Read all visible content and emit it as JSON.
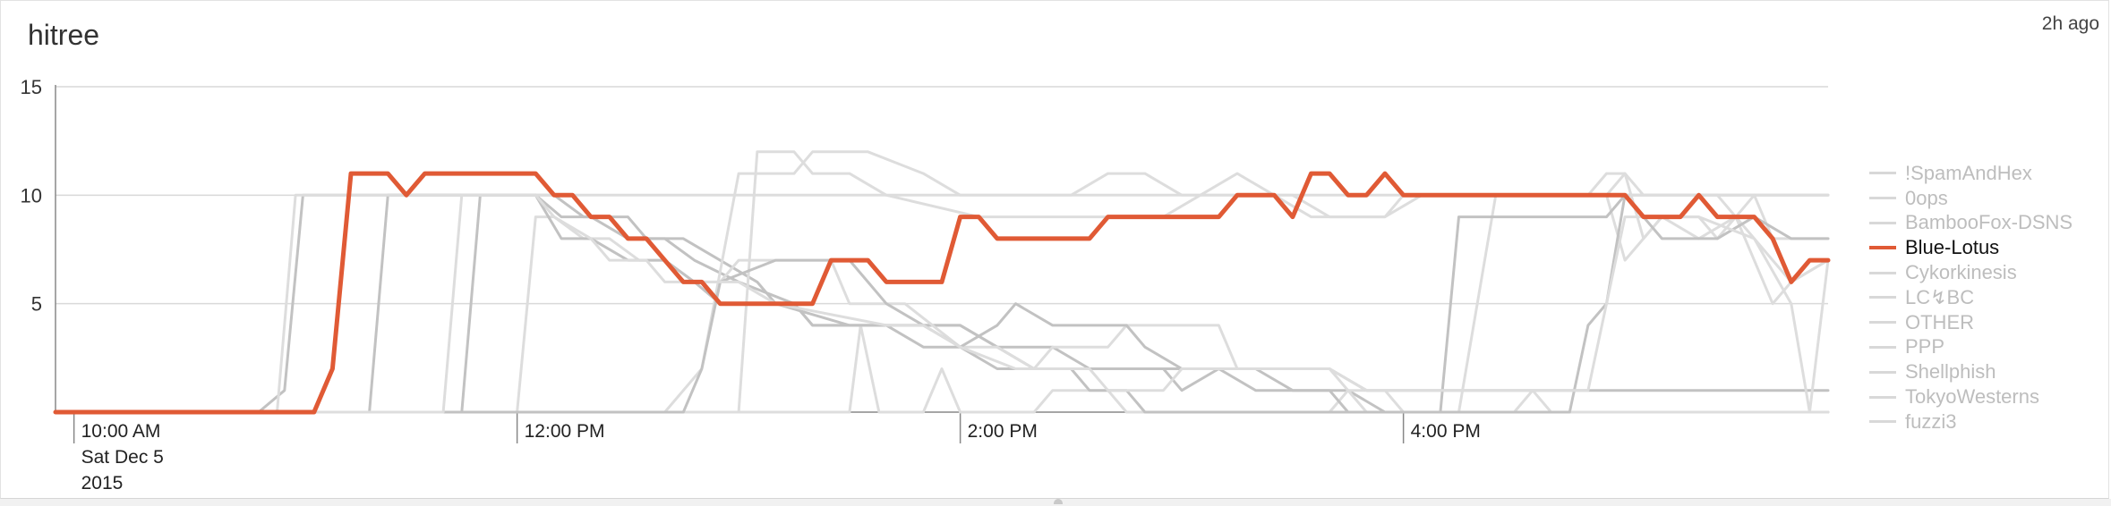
{
  "header": {
    "title": "hitree",
    "timestamp": "2h ago"
  },
  "colors": {
    "highlight": "#e05a35",
    "dimmed": "#dddddd",
    "dimmed_alt": "#c2c2c2",
    "grid": "#d9d9d9"
  },
  "chart_data": {
    "type": "line",
    "title": "hitree",
    "xlabel": "",
    "ylabel": "",
    "ylim": [
      0,
      15
    ],
    "xlim": [
      "09:55",
      "17:55"
    ],
    "y_ticks": [
      5,
      10,
      15
    ],
    "x_ticks": [
      {
        "time": "10:00",
        "label": "10:00 AM",
        "sublabel": [
          "Sat Dec 5",
          "2015"
        ]
      },
      {
        "time": "12:00",
        "label": "12:00 PM",
        "sublabel": []
      },
      {
        "time": "14:00",
        "label": "2:00 PM",
        "sublabel": []
      },
      {
        "time": "16:00",
        "label": "4:00 PM",
        "sublabel": []
      }
    ],
    "grid": true,
    "legend_position": "right",
    "highlighted_series": "Blue-Lotus",
    "series": [
      {
        "name": "!SpamAndHex",
        "points": [
          [
            "09:55",
            0
          ],
          [
            "10:50",
            0
          ],
          [
            "10:57",
            1
          ],
          [
            "11:02",
            10
          ],
          [
            "12:05",
            10
          ],
          [
            "12:12",
            9
          ],
          [
            "12:20",
            9
          ],
          [
            "12:30",
            8
          ],
          [
            "12:40",
            8
          ],
          [
            "12:48",
            7
          ],
          [
            "13:00",
            6
          ],
          [
            "13:15",
            5
          ],
          [
            "13:20",
            4
          ],
          [
            "14:00",
            4
          ],
          [
            "14:10",
            3
          ],
          [
            "14:25",
            3
          ],
          [
            "14:35",
            2
          ],
          [
            "15:20",
            2
          ],
          [
            "15:30",
            1
          ],
          [
            "15:45",
            1
          ],
          [
            "15:55",
            0
          ],
          [
            "17:55",
            0
          ]
        ]
      },
      {
        "name": "0ops",
        "points": [
          [
            "09:55",
            0
          ],
          [
            "11:45",
            0
          ],
          [
            "11:50",
            10
          ],
          [
            "12:10",
            10
          ],
          [
            "12:18",
            9
          ],
          [
            "12:30",
            9
          ],
          [
            "12:35",
            8
          ],
          [
            "12:45",
            8
          ],
          [
            "13:05",
            6
          ],
          [
            "13:10",
            5
          ],
          [
            "13:30",
            4
          ],
          [
            "14:00",
            4
          ],
          [
            "14:10",
            3
          ],
          [
            "14:20",
            2
          ],
          [
            "14:55",
            2
          ],
          [
            "15:00",
            1
          ],
          [
            "15:10",
            2
          ],
          [
            "15:40",
            2
          ],
          [
            "15:50",
            1
          ],
          [
            "17:55",
            1
          ]
        ]
      },
      {
        "name": "BambooFox-DSNS",
        "points": [
          [
            "09:55",
            0
          ],
          [
            "13:30",
            0
          ],
          [
            "13:33",
            4
          ],
          [
            "13:38",
            0
          ],
          [
            "13:50",
            0
          ],
          [
            "13:55",
            2
          ],
          [
            "14:00",
            0
          ],
          [
            "14:20",
            0
          ],
          [
            "14:25",
            1
          ],
          [
            "14:40",
            1
          ],
          [
            "14:45",
            0
          ],
          [
            "15:40",
            0
          ],
          [
            "15:45",
            1
          ],
          [
            "15:55",
            1
          ],
          [
            "16:00",
            0
          ],
          [
            "16:30",
            0
          ],
          [
            "16:35",
            1
          ],
          [
            "16:40",
            0
          ],
          [
            "17:55",
            0
          ]
        ]
      },
      {
        "name": "Blue-Lotus",
        "points": [
          [
            "09:55",
            0
          ],
          [
            "11:05",
            0
          ],
          [
            "11:10",
            2
          ],
          [
            "11:15",
            11
          ],
          [
            "11:25",
            11
          ],
          [
            "11:30",
            10
          ],
          [
            "11:35",
            11
          ],
          [
            "12:05",
            11
          ],
          [
            "12:10",
            10
          ],
          [
            "12:15",
            10
          ],
          [
            "12:20",
            9
          ],
          [
            "12:25",
            9
          ],
          [
            "12:30",
            8
          ],
          [
            "12:35",
            8
          ],
          [
            "12:45",
            6
          ],
          [
            "12:50",
            6
          ],
          [
            "12:55",
            5
          ],
          [
            "13:20",
            5
          ],
          [
            "13:25",
            7
          ],
          [
            "13:35",
            7
          ],
          [
            "13:40",
            6
          ],
          [
            "13:55",
            6
          ],
          [
            "14:00",
            9
          ],
          [
            "14:05",
            9
          ],
          [
            "14:10",
            8
          ],
          [
            "14:35",
            8
          ],
          [
            "14:40",
            9
          ],
          [
            "15:10",
            9
          ],
          [
            "15:15",
            10
          ],
          [
            "15:25",
            10
          ],
          [
            "15:30",
            9
          ],
          [
            "15:35",
            11
          ],
          [
            "15:40",
            11
          ],
          [
            "15:45",
            10
          ],
          [
            "15:50",
            10
          ],
          [
            "15:55",
            11
          ],
          [
            "16:00",
            10
          ],
          [
            "16:55",
            10
          ],
          [
            "17:00",
            10
          ],
          [
            "17:05",
            9
          ],
          [
            "17:15",
            9
          ],
          [
            "17:20",
            10
          ],
          [
            "17:25",
            9
          ],
          [
            "17:35",
            9
          ],
          [
            "17:40",
            8
          ],
          [
            "17:45",
            6
          ],
          [
            "17:50",
            7
          ],
          [
            "17:55",
            7
          ]
        ]
      },
      {
        "name": "Cykorkinesis",
        "points": [
          [
            "09:55",
            0
          ],
          [
            "12:00",
            0
          ],
          [
            "12:05",
            9
          ],
          [
            "12:10",
            9
          ],
          [
            "12:18",
            8
          ],
          [
            "12:25",
            8
          ],
          [
            "12:33",
            7
          ],
          [
            "12:40",
            7
          ],
          [
            "12:48",
            6
          ],
          [
            "12:55",
            6
          ],
          [
            "13:00",
            7
          ],
          [
            "13:25",
            7
          ],
          [
            "13:30",
            5
          ],
          [
            "13:45",
            5
          ],
          [
            "14:00",
            3
          ],
          [
            "14:10",
            3
          ],
          [
            "14:20",
            2
          ],
          [
            "14:25",
            3
          ],
          [
            "14:40",
            3
          ],
          [
            "14:45",
            4
          ],
          [
            "15:10",
            4
          ],
          [
            "15:15",
            2
          ],
          [
            "15:40",
            2
          ],
          [
            "15:50",
            0
          ],
          [
            "16:15",
            0
          ],
          [
            "16:25",
            10
          ],
          [
            "16:55",
            10
          ],
          [
            "17:00",
            7
          ],
          [
            "17:05",
            8
          ],
          [
            "17:10",
            9
          ],
          [
            "17:20",
            8
          ],
          [
            "17:30",
            9
          ],
          [
            "17:40",
            5
          ],
          [
            "17:45",
            6
          ],
          [
            "17:55",
            7
          ]
        ]
      },
      {
        "name": "LC↯BC",
        "points": [
          [
            "09:55",
            0
          ],
          [
            "11:20",
            0
          ],
          [
            "11:25",
            10
          ],
          [
            "11:55",
            10
          ],
          [
            "12:05",
            10
          ],
          [
            "12:12",
            8
          ],
          [
            "12:20",
            8
          ],
          [
            "12:30",
            7
          ],
          [
            "12:40",
            7
          ],
          [
            "12:48",
            6
          ],
          [
            "12:55",
            5
          ],
          [
            "13:15",
            5
          ],
          [
            "13:20",
            4
          ],
          [
            "13:40",
            4
          ],
          [
            "13:50",
            3
          ],
          [
            "14:00",
            3
          ],
          [
            "14:10",
            2
          ],
          [
            "14:30",
            2
          ],
          [
            "14:35",
            1
          ],
          [
            "14:45",
            1
          ],
          [
            "14:50",
            0
          ],
          [
            "16:45",
            0
          ],
          [
            "16:50",
            4
          ],
          [
            "16:55",
            5
          ],
          [
            "17:00",
            10
          ],
          [
            "17:55",
            10
          ]
        ]
      },
      {
        "name": "OTHER",
        "points": [
          [
            "09:55",
            0
          ],
          [
            "10:55",
            0
          ],
          [
            "11:00",
            10
          ],
          [
            "11:30",
            10
          ],
          [
            "11:40",
            10
          ],
          [
            "12:00",
            10
          ],
          [
            "12:05",
            10
          ],
          [
            "17:55",
            10
          ]
        ]
      },
      {
        "name": "PPP",
        "points": [
          [
            "09:55",
            0
          ],
          [
            "13:00",
            0
          ],
          [
            "13:05",
            12
          ],
          [
            "13:15",
            12
          ],
          [
            "13:20",
            11
          ],
          [
            "13:30",
            11
          ],
          [
            "13:40",
            10
          ],
          [
            "14:05",
            9
          ],
          [
            "14:15",
            9
          ],
          [
            "14:55",
            9
          ],
          [
            "15:05",
            10
          ],
          [
            "15:15",
            11
          ],
          [
            "15:25",
            10
          ],
          [
            "15:35",
            9
          ],
          [
            "15:55",
            9
          ],
          [
            "16:00",
            10
          ],
          [
            "16:55",
            10
          ],
          [
            "17:00",
            11
          ],
          [
            "17:05",
            8
          ],
          [
            "17:10",
            9
          ],
          [
            "17:20",
            9
          ],
          [
            "17:25",
            8
          ],
          [
            "17:35",
            10
          ],
          [
            "17:40",
            8
          ],
          [
            "17:55",
            8
          ]
        ]
      },
      {
        "name": "Shellphish",
        "points": [
          [
            "09:55",
            0
          ],
          [
            "12:40",
            0
          ],
          [
            "12:50",
            2
          ],
          [
            "13:00",
            11
          ],
          [
            "13:15",
            11
          ],
          [
            "13:20",
            12
          ],
          [
            "13:35",
            12
          ],
          [
            "13:50",
            11
          ],
          [
            "14:00",
            10
          ],
          [
            "14:30",
            10
          ],
          [
            "14:40",
            11
          ],
          [
            "14:50",
            11
          ],
          [
            "15:00",
            10
          ],
          [
            "15:30",
            10
          ],
          [
            "15:40",
            9
          ],
          [
            "15:55",
            9
          ],
          [
            "16:05",
            10
          ],
          [
            "16:50",
            10
          ],
          [
            "16:55",
            11
          ],
          [
            "17:00",
            11
          ],
          [
            "17:05",
            10
          ],
          [
            "17:25",
            10
          ],
          [
            "17:30",
            9
          ],
          [
            "17:40",
            7
          ],
          [
            "17:45",
            6
          ],
          [
            "17:55",
            7
          ]
        ]
      },
      {
        "name": "TokyoWesterns",
        "points": [
          [
            "09:55",
            0
          ],
          [
            "12:45",
            0
          ],
          [
            "12:50",
            2
          ],
          [
            "12:55",
            6
          ],
          [
            "13:10",
            7
          ],
          [
            "13:30",
            7
          ],
          [
            "13:35",
            6
          ],
          [
            "13:40",
            5
          ],
          [
            "13:50",
            4
          ],
          [
            "14:00",
            3
          ],
          [
            "14:10",
            4
          ],
          [
            "14:15",
            5
          ],
          [
            "14:25",
            4
          ],
          [
            "14:45",
            4
          ],
          [
            "14:50",
            3
          ],
          [
            "15:00",
            2
          ],
          [
            "15:10",
            2
          ],
          [
            "15:20",
            1
          ],
          [
            "15:40",
            1
          ],
          [
            "15:45",
            0
          ],
          [
            "16:10",
            0
          ],
          [
            "16:15",
            9
          ],
          [
            "16:55",
            9
          ],
          [
            "17:00",
            10
          ],
          [
            "17:10",
            8
          ],
          [
            "17:25",
            8
          ],
          [
            "17:35",
            9
          ],
          [
            "17:45",
            8
          ],
          [
            "17:55",
            8
          ]
        ]
      },
      {
        "name": "fuzzi3",
        "points": [
          [
            "09:55",
            0
          ],
          [
            "11:40",
            0
          ],
          [
            "11:45",
            10
          ],
          [
            "11:55",
            10
          ],
          [
            "12:05",
            10
          ],
          [
            "12:10",
            9
          ],
          [
            "12:20",
            8
          ],
          [
            "12:25",
            7
          ],
          [
            "12:35",
            7
          ],
          [
            "12:40",
            6
          ],
          [
            "13:00",
            6
          ],
          [
            "13:10",
            5
          ],
          [
            "13:40",
            4
          ],
          [
            "13:50",
            4
          ],
          [
            "14:00",
            3
          ],
          [
            "14:15",
            2
          ],
          [
            "14:35",
            2
          ],
          [
            "14:40",
            1
          ],
          [
            "14:55",
            1
          ],
          [
            "15:00",
            2
          ],
          [
            "15:40",
            2
          ],
          [
            "15:50",
            1
          ],
          [
            "16:50",
            1
          ],
          [
            "17:00",
            9
          ],
          [
            "17:10",
            9
          ],
          [
            "17:20",
            9
          ],
          [
            "17:35",
            8
          ],
          [
            "17:45",
            5
          ],
          [
            "17:50",
            0
          ],
          [
            "17:55",
            7
          ]
        ]
      }
    ]
  }
}
